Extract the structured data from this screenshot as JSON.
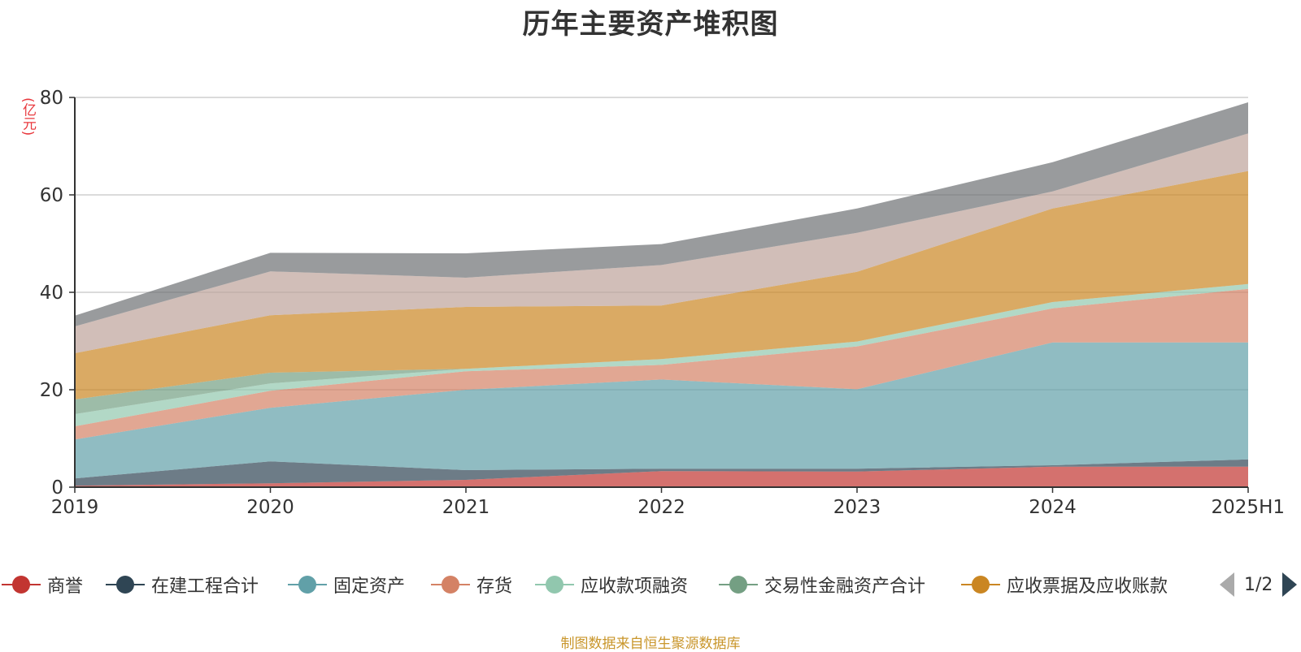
{
  "title": "历年主要资产堆积图",
  "unit_label": "(亿元)",
  "source": "制图数据来自恒生聚源数据库",
  "pager": {
    "text": "1/2"
  },
  "legend": [
    {
      "label": "商誉",
      "color": "#c23531"
    },
    {
      "label": "在建工程合计",
      "color": "#2f4554"
    },
    {
      "label": "固定资产",
      "color": "#61a0a8"
    },
    {
      "label": "存货",
      "color": "#d48265"
    },
    {
      "label": "应收款项融资",
      "color": "#91c7ae"
    },
    {
      "label": "交易性金融资产合计",
      "color": "#749f83"
    },
    {
      "label": "应收票据及应收账款",
      "color": "#ca8622"
    }
  ],
  "chart_data": {
    "type": "area",
    "stacked": true,
    "title": "历年主要资产堆积图",
    "ylabel": "(亿元)",
    "categories": [
      "2019",
      "2020",
      "2021",
      "2022",
      "2023",
      "2024",
      "2025H1"
    ],
    "ylim": [
      0,
      80
    ],
    "yticks": [
      0,
      20,
      40,
      60,
      80
    ],
    "grid": true,
    "legend_position": "bottom",
    "series": [
      {
        "name": "商誉",
        "color": "#c23531",
        "values": [
          0.3,
          0.8,
          1.5,
          3.3,
          3.2,
          4.2,
          4.2
        ]
      },
      {
        "name": "在建工程合计",
        "color": "#2f4554",
        "values": [
          1.5,
          4.5,
          2.0,
          0.5,
          0.6,
          0.3,
          1.5
        ]
      },
      {
        "name": "固定资产",
        "color": "#61a0a8",
        "values": [
          8.0,
          11.0,
          16.5,
          18.3,
          16.3,
          25.2,
          24.0
        ]
      },
      {
        "name": "存货",
        "color": "#d48265",
        "values": [
          2.7,
          3.5,
          3.8,
          3.0,
          8.8,
          7.0,
          11.0
        ]
      },
      {
        "name": "应收款项融资",
        "color": "#91c7ae",
        "values": [
          2.5,
          1.5,
          0.5,
          1.2,
          1.0,
          1.3,
          1.0
        ]
      },
      {
        "name": "交易性金融资产合计",
        "color": "#749f83",
        "values": [
          3.0,
          2.2,
          0.0,
          0.0,
          0.0,
          0.0,
          0.0
        ]
      },
      {
        "name": "应收票据及应收账款",
        "color": "#ca8622",
        "values": [
          9.5,
          11.8,
          12.7,
          11.0,
          14.3,
          19.2,
          23.2
        ]
      },
      {
        "name": "",
        "color": "#bda29a",
        "values": [
          5.5,
          9.0,
          6.0,
          8.3,
          8.0,
          3.5,
          7.7
        ]
      },
      {
        "name": "",
        "color": "#6e7074",
        "values": [
          2.2,
          3.8,
          5.0,
          4.3,
          5.0,
          6.0,
          6.4
        ]
      }
    ]
  }
}
